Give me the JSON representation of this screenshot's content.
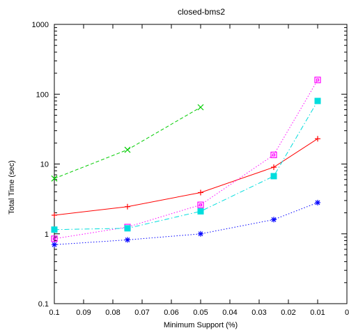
{
  "chart_data": {
    "type": "line",
    "title": "closed-bms2",
    "xlabel": "Minimum Support (%)",
    "ylabel": "Total Time (sec)",
    "x_scale": "linear",
    "x_reversed": true,
    "xlim": [
      0.1,
      0
    ],
    "xticks": [
      "0.1",
      "0.09",
      "0.08",
      "0.07",
      "0.06",
      "0.05",
      "0.04",
      "0.03",
      "0.02",
      "0.01",
      "0"
    ],
    "y_scale": "log",
    "ylim": [
      0.1,
      1000
    ],
    "yticks": [
      "0.1",
      "1",
      "10",
      "100",
      "1000"
    ],
    "grid": false,
    "legend": "none",
    "series": [
      {
        "color": "#00cc00",
        "dash": "dashed",
        "marker": "x",
        "x": [
          0.1,
          0.075,
          0.05
        ],
        "y": [
          6.2,
          16.0,
          65.0
        ]
      },
      {
        "color": "#ff0000",
        "dash": "solid",
        "marker": "plus",
        "x": [
          0.1,
          0.075,
          0.05,
          0.025,
          0.01
        ],
        "y": [
          1.85,
          2.45,
          3.9,
          9.0,
          23.0
        ]
      },
      {
        "color": "#ff00ff",
        "dash": "dotted",
        "marker": "open-square",
        "x": [
          0.1,
          0.075,
          0.05,
          0.025,
          0.01
        ],
        "y": [
          0.85,
          1.25,
          2.6,
          13.5,
          160.0
        ]
      },
      {
        "color": "#00dddd",
        "dash": "dashdot",
        "marker": "filled-square",
        "x": [
          0.1,
          0.075,
          0.05,
          0.025,
          0.01
        ],
        "y": [
          1.15,
          1.2,
          2.1,
          6.7,
          80.0
        ]
      },
      {
        "color": "#0000ff",
        "dash": "dotted",
        "marker": "star",
        "x": [
          0.1,
          0.075,
          0.05,
          0.025,
          0.01
        ],
        "y": [
          0.7,
          0.82,
          1.0,
          1.6,
          2.8
        ]
      }
    ]
  }
}
